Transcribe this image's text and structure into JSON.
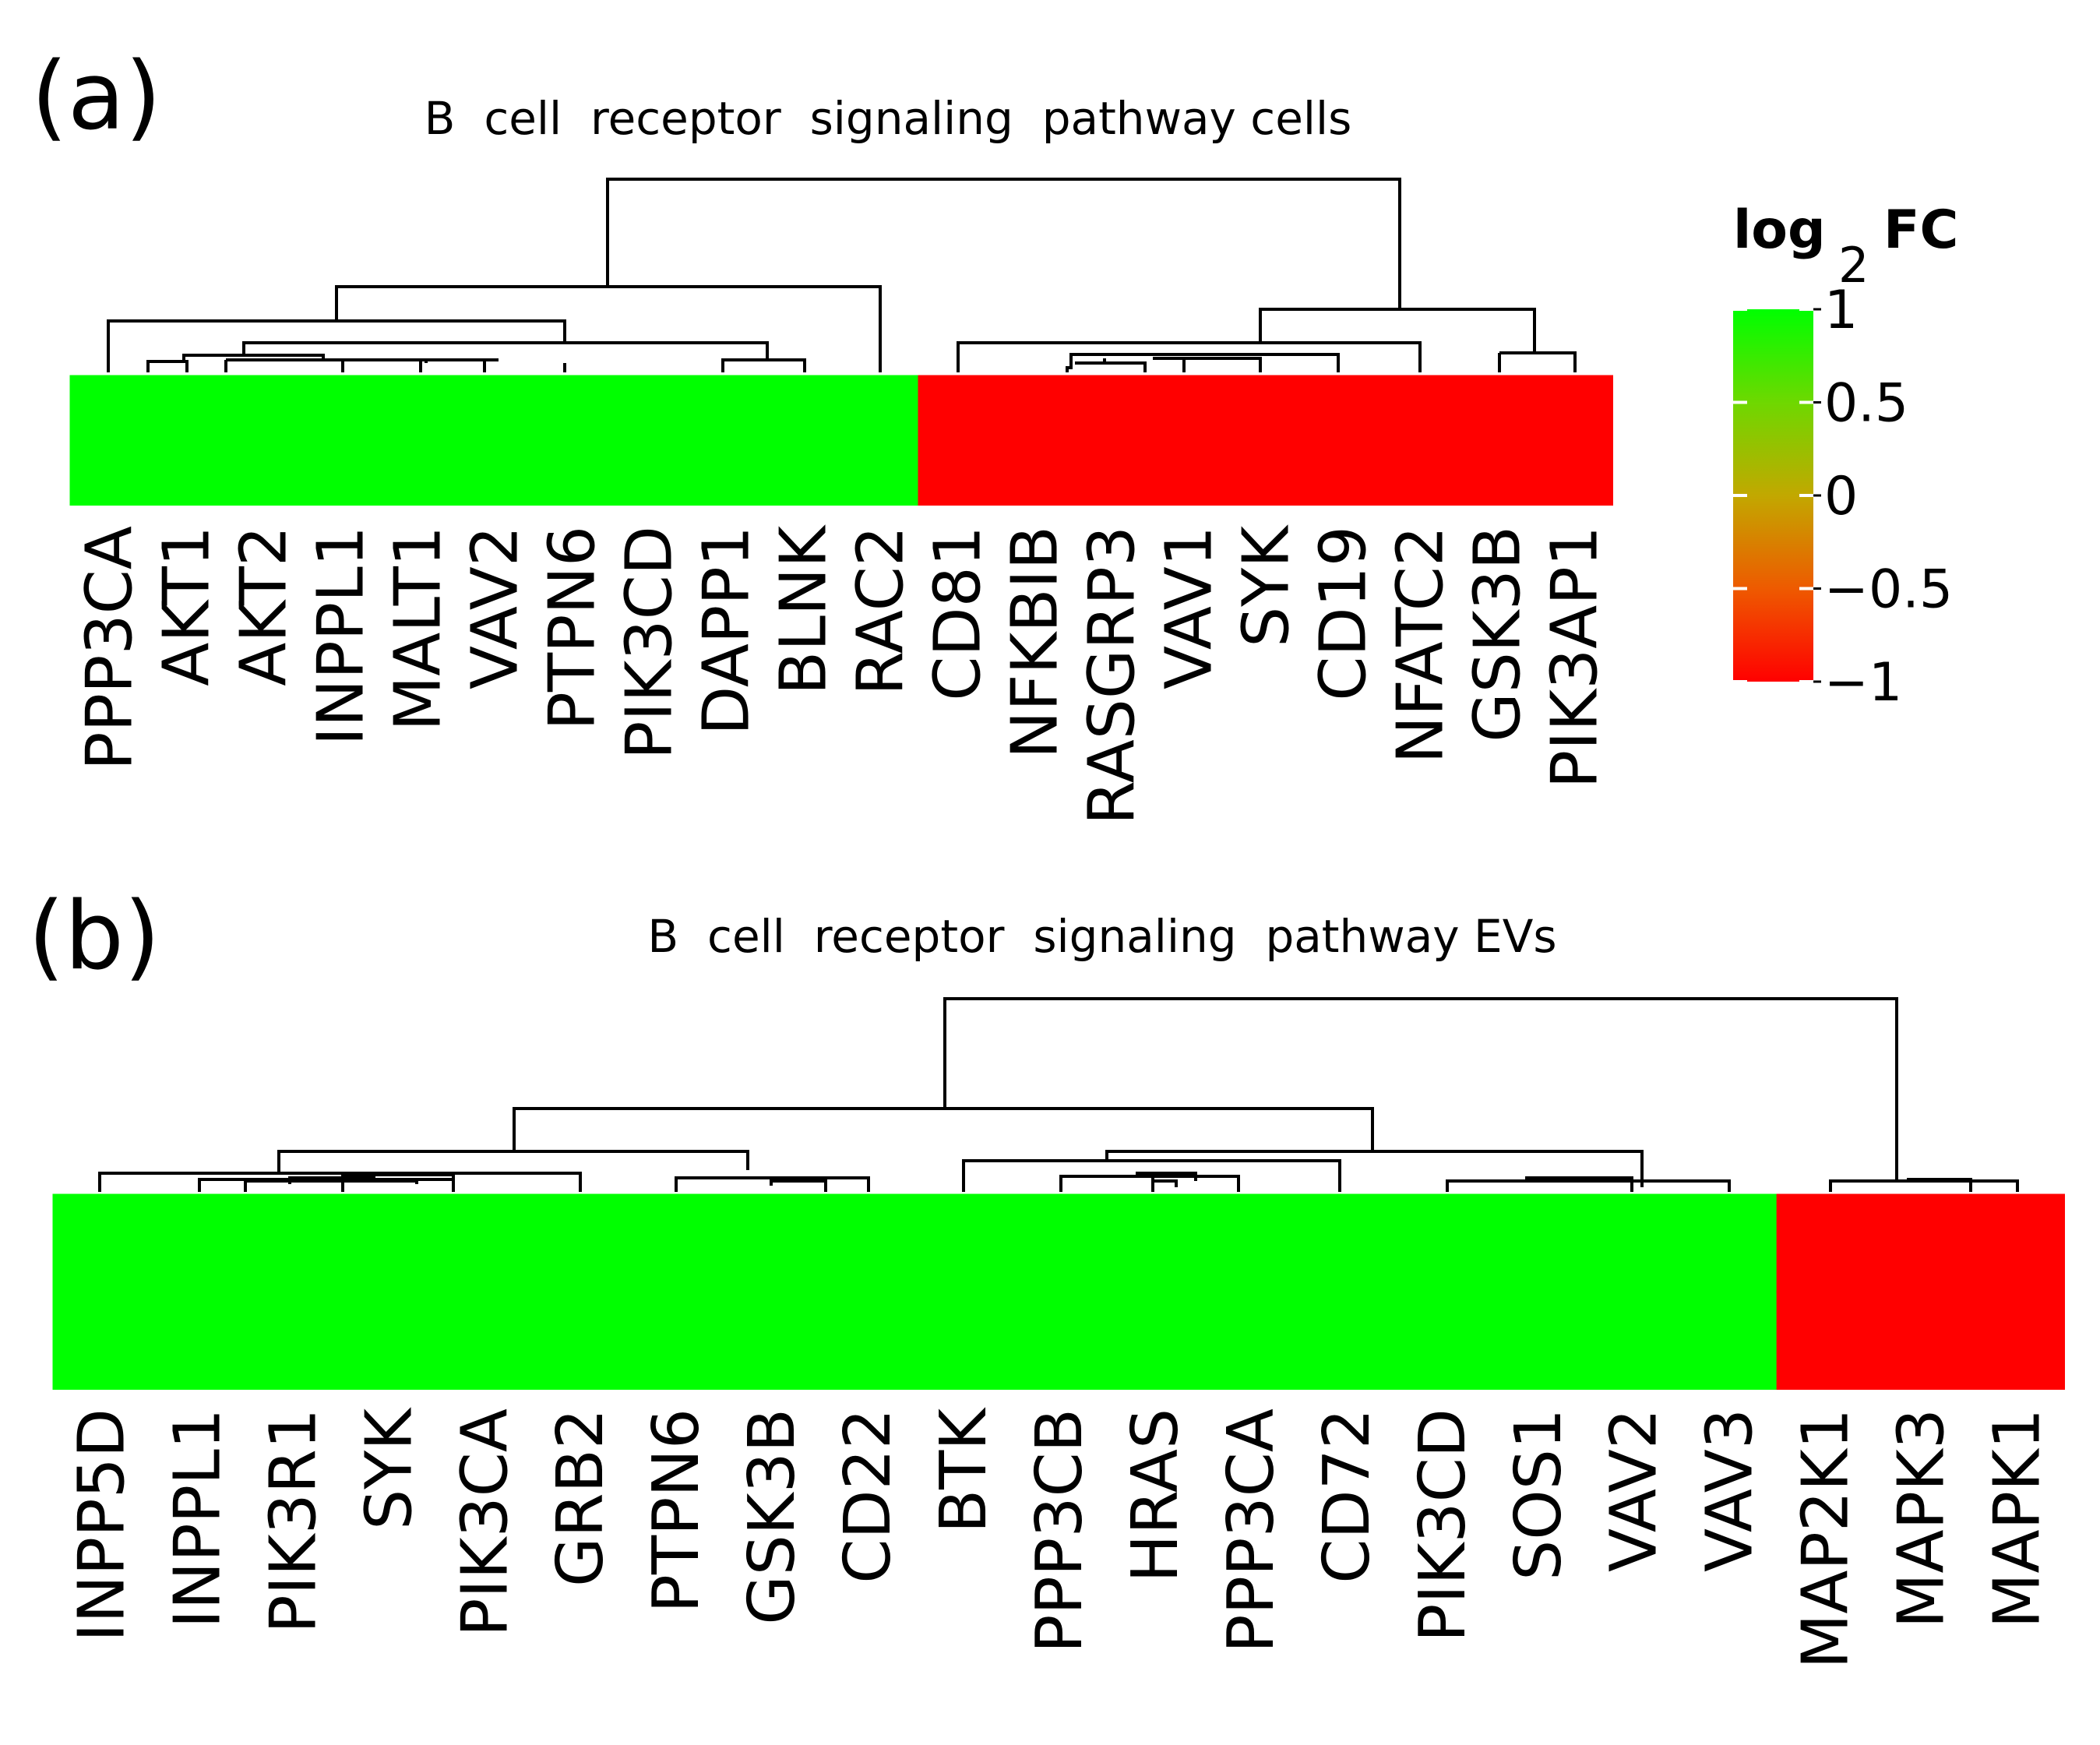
{
  "chart_data": [
    {
      "type": "heatmap",
      "panel_label": "(a)",
      "title": "B  cell  receptor  signaling  pathway cells",
      "genes": [
        "PPP3CA",
        "AKT1",
        "AKT2",
        "INPPL1",
        "MALT1",
        "VAV2",
        "PTPN6",
        "PIK3CD",
        "DAPP1",
        "BLNK",
        "RAC2",
        "CD81",
        "NFKBIB",
        "RASGRP3",
        "VAV1",
        "SYK",
        "CD19",
        "NFATC2",
        "GSK3B",
        "PIK3AP1"
      ],
      "values": [
        1,
        1,
        1,
        1,
        1,
        1,
        1,
        1,
        1,
        1,
        1,
        -1,
        -1,
        -1,
        -1,
        -1,
        -1,
        -1,
        -1,
        -1
      ],
      "dendrogram": "(((PPP3CA,(AKT1,(AKT2,((INPPL1,(MALT1,VAV2)),PTPN6),PIK3CD))),(DAPP1,BLNK)),RAC2),((CD81,((NFKBIB,RASGRP3),(VAV1,SYK),CD19)),NFATC2),(GSK3B,PIK3AP1))"
    },
    {
      "type": "heatmap",
      "panel_label": "(b)",
      "title": "B  cell  receptor  signaling  pathway EVs",
      "genes": [
        "INPP5D",
        "INPPL1",
        "PIK3R1",
        "SYK",
        "PIK3CA",
        "GRB2",
        "PTPN6",
        "GSK3B",
        "CD22",
        "BTK",
        "PPP3CB",
        "HRAS",
        "PPP3CA",
        "CD72",
        "PIK3CD",
        "SOS1",
        "VAV2",
        "VAV3",
        "MAP2K1",
        "MAPK3",
        "MAPK1"
      ],
      "values": [
        1,
        1,
        1,
        1,
        1,
        1,
        1,
        1,
        1,
        1,
        1,
        1,
        1,
        1,
        1,
        1,
        1,
        1,
        -1,
        -1,
        -1
      ]
    }
  ],
  "legend": {
    "title_main": "log",
    "title_sub": "2",
    "title_end": "FC",
    "ticks": [
      1,
      0.5,
      0,
      -0.5,
      -1
    ],
    "tick_labels": [
      "1",
      "0.5",
      "0",
      "−0.5",
      "−1"
    ],
    "range": [
      -1,
      1
    ]
  },
  "colors": {
    "high": "#00ff00",
    "mid": "#c2b600",
    "low": "#ff0000"
  }
}
